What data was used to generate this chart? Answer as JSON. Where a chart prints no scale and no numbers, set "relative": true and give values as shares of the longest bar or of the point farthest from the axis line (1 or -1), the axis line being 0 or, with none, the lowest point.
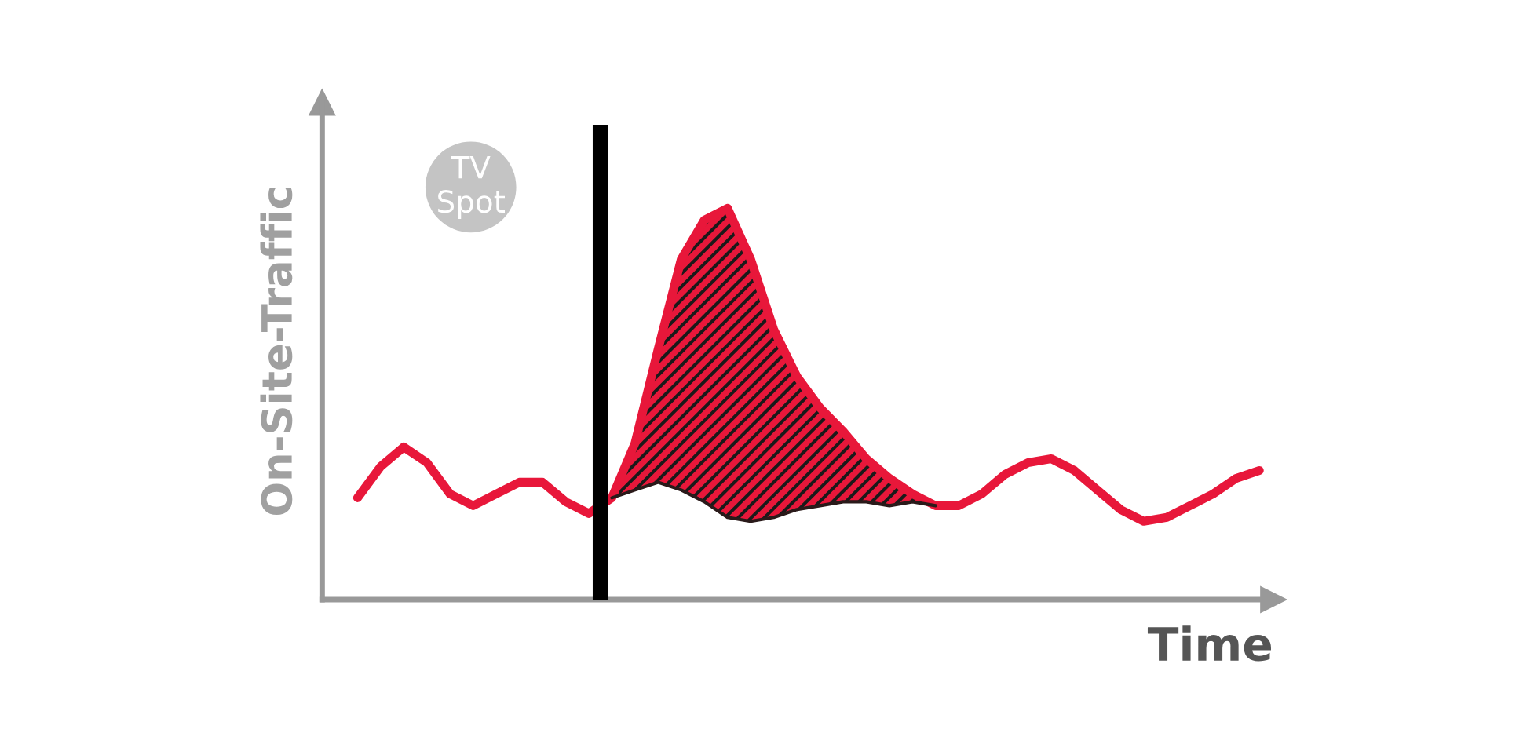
{
  "chart_data": {
    "type": "line",
    "relative": true,
    "xlabel": "Time",
    "ylabel": "On-Site-Traffic",
    "annotations": [
      "TV Spot"
    ],
    "marker": "none",
    "line_style": "solid",
    "categories": [
      null,
      null,
      null,
      null,
      null,
      null,
      null,
      null,
      null,
      null,
      null,
      null,
      null,
      null,
      null,
      null,
      null,
      null,
      null,
      null,
      null,
      null,
      null,
      null,
      null,
      null,
      null,
      null,
      null,
      null,
      null,
      null,
      null,
      null,
      null,
      null,
      null,
      null,
      null,
      null
    ],
    "series": [
      {
        "color": "#e8173a",
        "values": [
          0.26,
          0.34,
          0.39,
          0.35,
          0.27,
          0.24,
          0.27,
          0.3,
          0.3,
          0.25,
          0.22,
          0.26,
          0.4,
          0.64,
          0.87,
          0.97,
          1.0,
          0.87,
          0.69,
          0.57,
          0.49,
          0.43,
          0.36,
          0.31,
          0.27,
          0.24,
          0.24,
          0.27,
          0.32,
          0.35,
          0.36,
          0.33,
          0.28,
          0.23,
          0.2,
          0.21,
          0.24,
          0.27,
          0.31,
          0.33
        ],
        "lower": [
          null,
          null,
          null,
          null,
          null,
          null,
          null,
          null,
          null,
          null,
          null,
          0.26,
          0.28,
          0.3,
          0.28,
          0.25,
          0.21,
          0.2,
          0.21,
          0.23,
          0.24,
          0.25,
          0.25,
          0.24,
          0.25,
          0.24,
          null,
          null,
          null,
          null,
          null,
          null,
          null,
          null,
          null,
          null,
          null,
          null,
          null,
          null
        ],
        "upper": [
          null,
          null,
          null,
          null,
          null,
          null,
          null,
          null,
          null,
          null,
          null,
          0.26,
          0.4,
          0.64,
          0.87,
          0.97,
          1.0,
          0.87,
          0.69,
          0.57,
          0.49,
          0.43,
          0.36,
          0.31,
          0.27,
          0.24,
          null,
          null,
          null,
          null,
          null,
          null,
          null,
          null,
          null,
          null,
          null,
          null,
          null,
          null
        ]
      },
      {
        "color": "#2a1a1a",
        "values": [
          null,
          null,
          null,
          null,
          null,
          null,
          null,
          null,
          null,
          null,
          null,
          0.26,
          0.28,
          0.3,
          0.28,
          0.25,
          0.21,
          0.2,
          0.21,
          0.23,
          0.24,
          0.25,
          0.25,
          0.24,
          0.25,
          0.24,
          null,
          null,
          null,
          null,
          null,
          null,
          null,
          null,
          null,
          null,
          null,
          null,
          null,
          null
        ]
      }
    ]
  }
}
